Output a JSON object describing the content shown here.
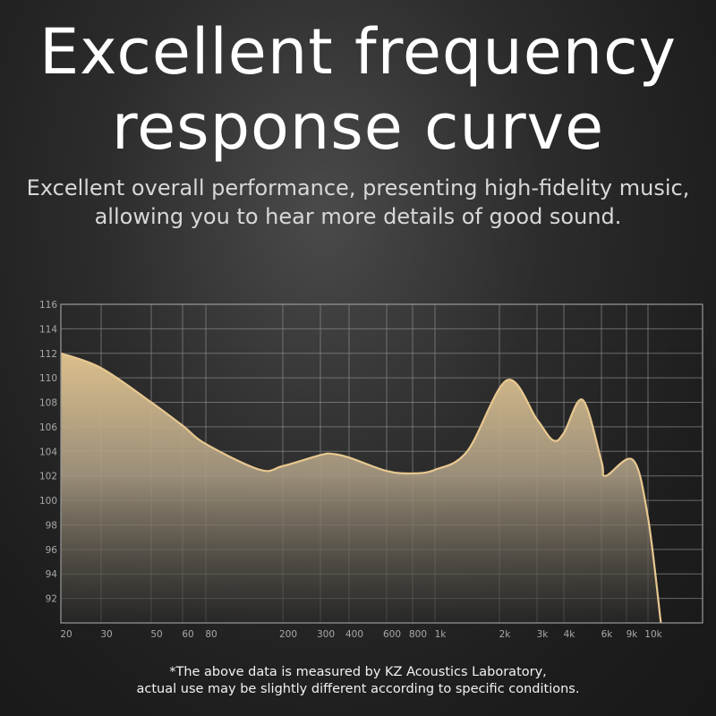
{
  "header": {
    "title_line1": "Excellent frequency",
    "title_line2": "response curve",
    "subtitle_line1": "Excellent overall performance, presenting high-fidelity music,",
    "subtitle_line2": "allowing you to hear more details of good sound."
  },
  "footer": {
    "line1": "*The above data is measured by KZ Acoustics Laboratory,",
    "line2": "actual use may be slightly different according to specific conditions."
  },
  "colors": {
    "curve": "#e8c890",
    "fill_top": "#dcc08c",
    "grid": "#8a8a8a"
  },
  "chart_data": {
    "type": "area",
    "title": "",
    "xlabel": "",
    "ylabel": "",
    "x_tick_labels": [
      "20",
      "30",
      "50",
      "60",
      "80",
      "200",
      "300",
      "400",
      "600",
      "800",
      "1k",
      "2k",
      "3k",
      "4k",
      "6k",
      "9k",
      "10k"
    ],
    "x_tick_values": [
      20,
      30,
      50,
      60,
      80,
      200,
      300,
      400,
      600,
      800,
      1000,
      2000,
      3000,
      4000,
      6000,
      9000,
      10000
    ],
    "y_tick_labels": [
      "116",
      "114",
      "112",
      "110",
      "108",
      "106",
      "104",
      "102",
      "100",
      "98",
      "96",
      "94",
      "92"
    ],
    "ylim": [
      90,
      116
    ],
    "grid": true,
    "series": [
      {
        "x": [
          20,
          30,
          50,
          60,
          80,
          164,
          200,
          300,
          340,
          400,
          600,
          800,
          1000,
          1500,
          2200,
          3000,
          3600,
          4000,
          5000,
          6000,
          6500,
          9300,
          10000,
          10600
        ],
        "y": [
          112,
          110.8,
          108,
          106.1,
          104.6,
          102.5,
          102.8,
          103.7,
          103.8,
          103.5,
          102.4,
          102.2,
          102.5,
          104,
          109.8,
          106.6,
          104.9,
          105.5,
          108.2,
          103.2,
          102,
          103.3,
          98.6,
          90
        ]
      }
    ]
  }
}
